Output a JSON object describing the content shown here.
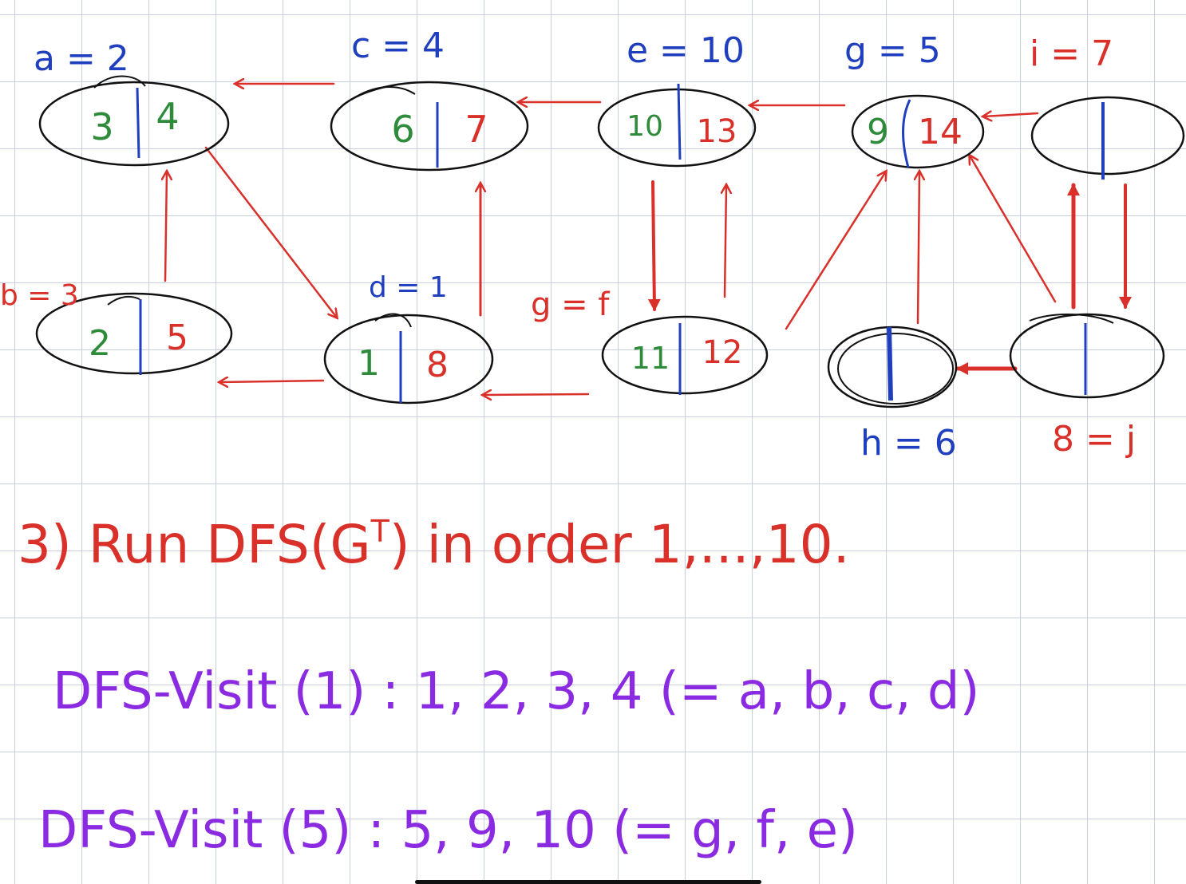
{
  "colors": {
    "ink_black": "#111111",
    "ink_red": "#d9302a",
    "ink_blue": "#1f3fbf",
    "ink_green": "#2e8b3a",
    "ink_purple": "#8a2be2"
  },
  "nodes": [
    {
      "id": "a",
      "label": "a = 2",
      "d": "3",
      "f": "4"
    },
    {
      "id": "c",
      "label": "c = 4",
      "d": "6",
      "f": "7"
    },
    {
      "id": "e",
      "label": "e = 10",
      "d": "10",
      "f": "13"
    },
    {
      "id": "g",
      "label": "g = 5",
      "d": "9",
      "f": "14"
    },
    {
      "id": "i",
      "label": "i = 7",
      "d": "",
      "f": ""
    },
    {
      "id": "b",
      "label": "b = 3",
      "d": "2",
      "f": "5"
    },
    {
      "id": "d",
      "label": "d = 1",
      "d": "1",
      "f": "8"
    },
    {
      "id": "f",
      "label": "g = f",
      "d": "11",
      "f": "12"
    },
    {
      "id": "h",
      "label": "h = 6",
      "d": "",
      "f": ""
    },
    {
      "id": "j",
      "label": "8 = j",
      "d": "",
      "f": ""
    }
  ],
  "notes": {
    "step": "3) Run DFS(G",
    "step_sup": "T",
    "step_tail": ") in order 1,...,10.",
    "visit1": "DFS-Visit (1) :  1, 2, 3, 4  (= a, b, c, d)",
    "visit2": "DFS-Visit (5) :  5, 9, 10  (= g, f, e)"
  }
}
